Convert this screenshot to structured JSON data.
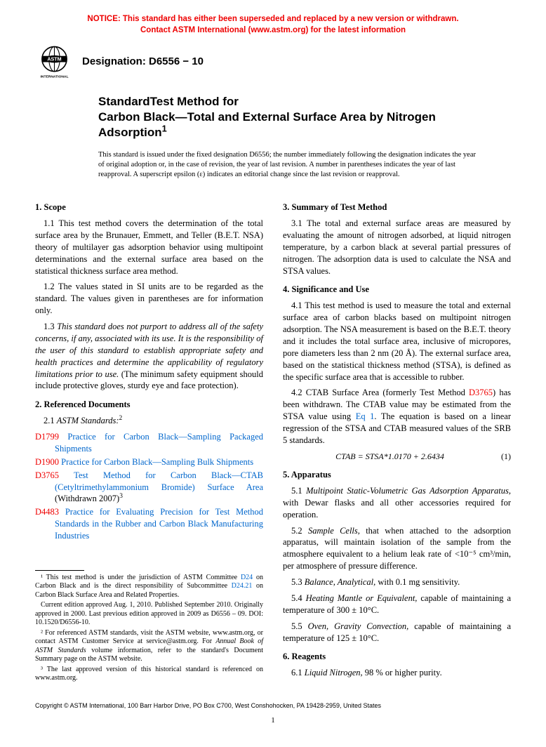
{
  "notice": {
    "color": "#ee0000",
    "line1": "NOTICE: This standard has either been superseded and replaced by a new version or withdrawn.",
    "line2": "Contact ASTM International (www.astm.org) for the latest information"
  },
  "header": {
    "designation_label": "Designation: D6556 − 10"
  },
  "title": {
    "line1": "StandardTest Method for",
    "line2": "Carbon Black—Total and External Surface Area by Nitrogen Adsorption",
    "sup": "1"
  },
  "fixed_note": "This standard is issued under the fixed designation D6556; the number immediately following the designation indicates the year of original adoption or, in the case of revision, the year of last revision. A number in parentheses indicates the year of last reapproval. A superscript epsilon (ε) indicates an editorial change since the last revision or reapproval.",
  "sections": {
    "s1_head": "1. Scope",
    "s1_1": "1.1 This test method covers the determination of the total surface area by the Brunauer, Emmett, and Teller (B.E.T. NSA) theory of multilayer gas adsorption behavior using multipoint determinations and the external surface area based on the statistical thickness surface area method.",
    "s1_2": "1.2 The values stated in SI units are to be regarded as the standard. The values given in parentheses are for information only.",
    "s1_3a": "1.3 ",
    "s1_3b": "This standard does not purport to address all of the safety concerns, if any, associated with its use. It is the responsibility of the user of this standard to establish appropriate safety and health practices and determine the applicability of regulatory limitations prior to use.",
    "s1_3c": " (The minimum safety equipment should include protective gloves, sturdy eye and face protection).",
    "s2_head": "2. Referenced Documents",
    "s2_1": "2.1 ",
    "s2_1_label": "ASTM Standards:",
    "s2_1_sup": "2",
    "refs": [
      {
        "code": "D1799",
        "title": "Practice for Carbon Black—Sampling Packaged Shipments"
      },
      {
        "code": "D1900",
        "title": "Practice for Carbon Black—Sampling Bulk Shipments"
      },
      {
        "code": "D3765",
        "title": "Test Method for Carbon Black—CTAB (Cetyltrimethylammonium Bromide) Surface Area",
        "suffix": " (Withdrawn 2007)",
        "sup": "3"
      },
      {
        "code": "D4483",
        "title": "Practice for Evaluating Precision for Test Method Standards in the Rubber and Carbon Black Manufacturing Industries"
      }
    ],
    "s3_head": "3. Summary of Test Method",
    "s3_1": "3.1 The total and external surface areas are measured by evaluating the amount of nitrogen adsorbed, at liquid nitrogen temperature, by a carbon black at several partial pressures of nitrogen. The adsorption data is used to calculate the NSA and STSA values.",
    "s4_head": "4. Significance and Use",
    "s4_1": "4.1 This test method is used to measure the total and external surface area of carbon blacks based on multipoint nitrogen adsorption. The NSA measurement is based on the B.E.T. theory and it includes the total surface area, inclusive of micropores, pore diameters less than 2 nm (20 Å). The external surface area, based on the statistical thickness method (STSA), is defined as the specific surface area that is accessible to rubber.",
    "s4_2a": "4.2 CTAB Surface Area (formerly Test Method ",
    "s4_2_ref": "D3765",
    "s4_2b": ") has been withdrawn. The CTAB value may be estimated from the STSA value using ",
    "s4_2_eq": "Eq 1",
    "s4_2c": ". The equation is based on a linear regression of the STSA and CTAB measured values of the SRB 5 standards.",
    "equation": "CTAB = STSA*1.0170 + 2.6434",
    "eq_num": "(1)",
    "s5_head": "5. Apparatus",
    "s5_1a": "5.1 ",
    "s5_1b": "Multipoint Static-Volumetric Gas Adsorption Apparatus,",
    "s5_1c": " with Dewar flasks and all other accessories required for operation.",
    "s5_2a": "5.2 ",
    "s5_2b": "Sample Cells,",
    "s5_2c": " that when attached to the adsorption apparatus, will maintain isolation of the sample from the atmosphere equivalent to a helium leak rate of <10⁻⁵ cm³/min, per atmosphere of pressure difference.",
    "s5_3a": "5.3 ",
    "s5_3b": "Balance, Analytical,",
    "s5_3c": " with 0.1 mg sensitivity.",
    "s5_4a": "5.4 ",
    "s5_4b": "Heating Mantle or Equivalent,",
    "s5_4c": " capable of maintaining a temperature of 300 ± 10°C.",
    "s5_5a": "5.5 ",
    "s5_5b": "Oven, Gravity Convection,",
    "s5_5c": " capable of maintaining a temperature of 125 ± 10°C.",
    "s6_head": "6. Reagents",
    "s6_1a": "6.1 ",
    "s6_1b": "Liquid Nitrogen,",
    "s6_1c": " 98 % or higher purity."
  },
  "footnotes": {
    "f1a": "¹ This test method is under the jurisdiction of ASTM Committee ",
    "f1_link1": "D24",
    "f1b": " on Carbon Black and is the direct responsibility of Subcommittee ",
    "f1_link2": "D24.21",
    "f1c": " on Carbon Black Surface Area and Related Properties.",
    "f1d": "Current edition approved Aug. 1, 2010. Published September 2010. Originally approved in 2000. Last previous edition approved in 2009 as D6556 – 09. DOI: 10.1520/D6556-10.",
    "f2": "² For referenced ASTM standards, visit the ASTM website, www.astm.org, or contact ASTM Customer Service at service@astm.org. For Annual Book of ASTM Standards volume information, refer to the standard's Document Summary page on the ASTM website.",
    "f3": "³ The last approved version of this historical standard is referenced on www.astm.org."
  },
  "copyright": "Copyright © ASTM International, 100 Barr Harbor Drive, PO Box C700, West Conshohocken, PA 19428-2959, United States",
  "page_num": "1"
}
